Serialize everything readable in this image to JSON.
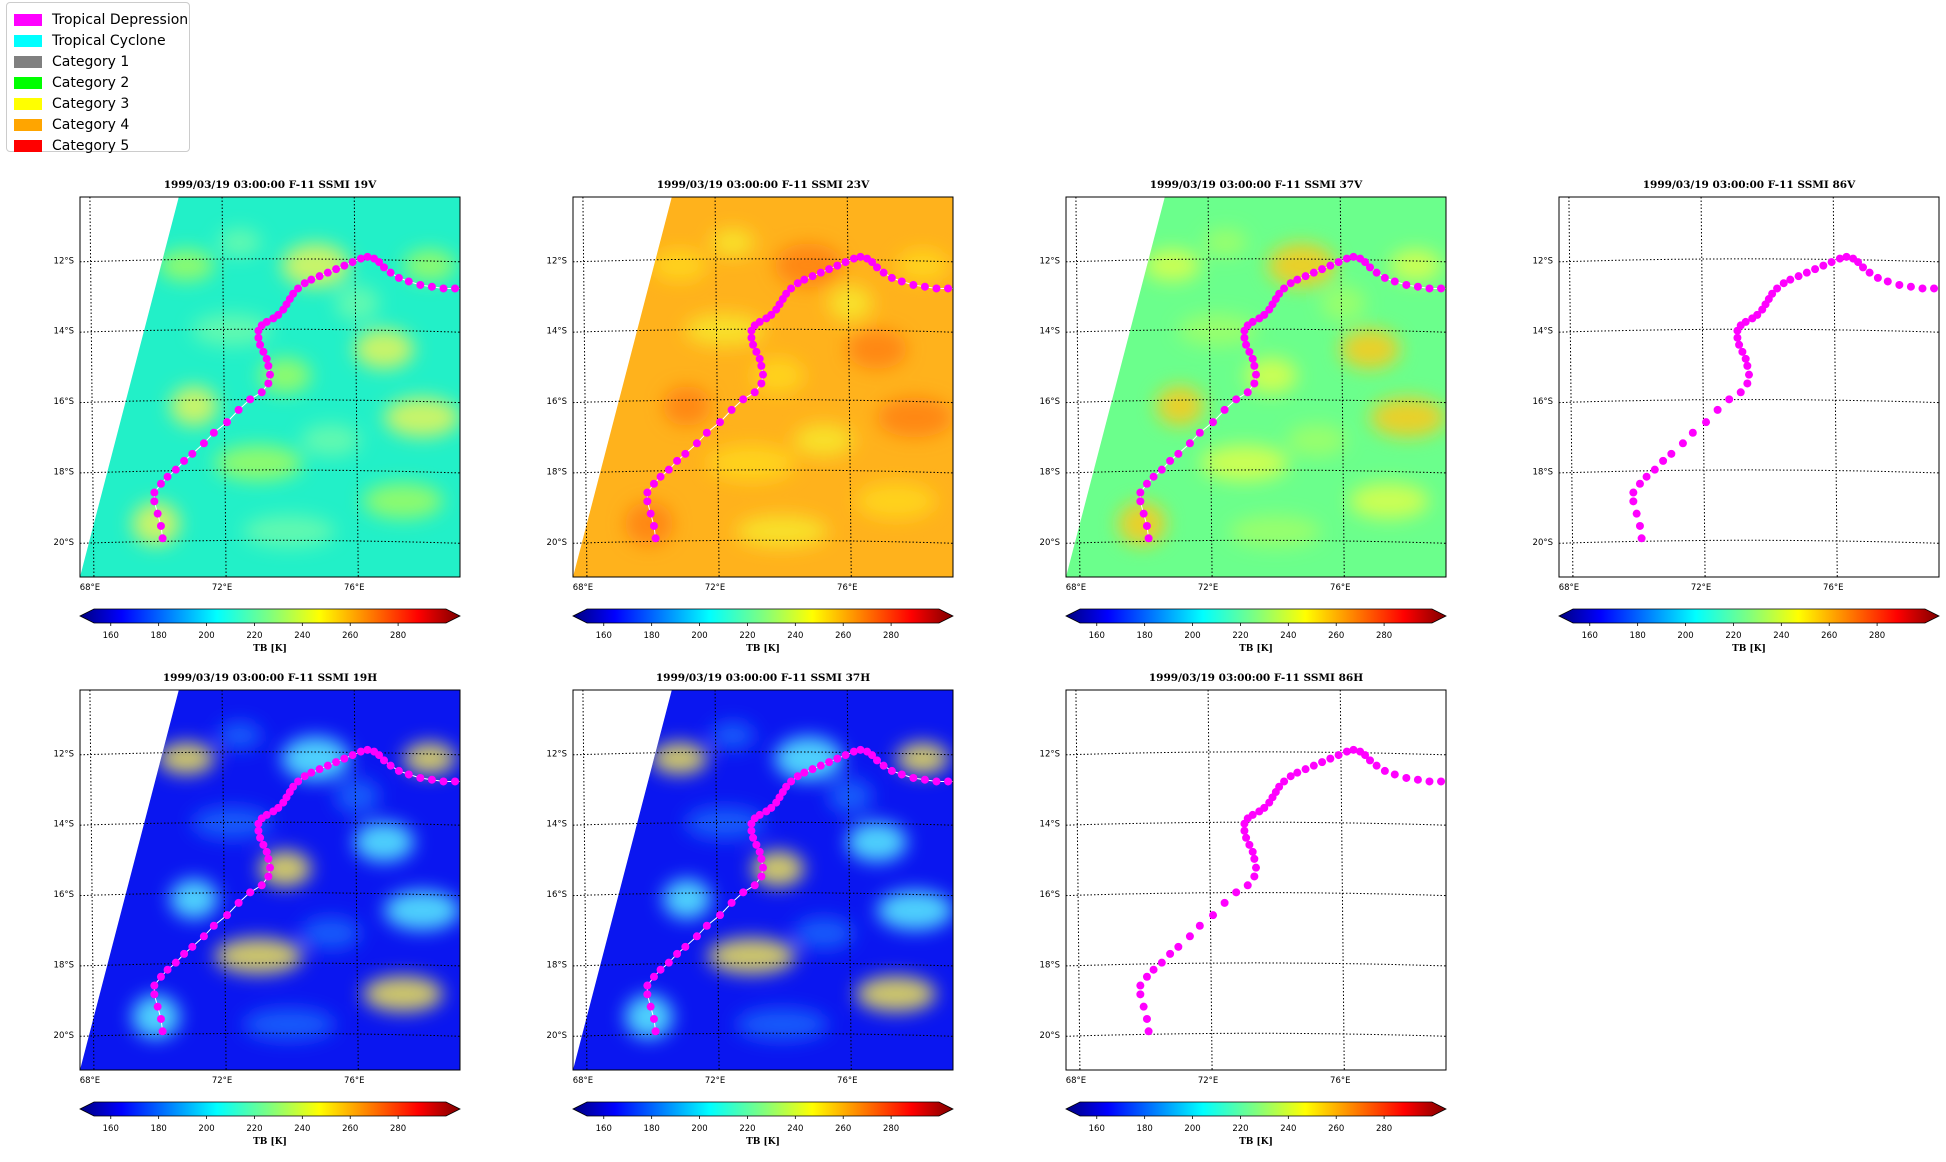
{
  "legend": {
    "items": [
      {
        "label": "Tropical Depression",
        "color": "#ff00ff"
      },
      {
        "label": "Tropical Cyclone",
        "color": "#00ffff"
      },
      {
        "label": "Category 1",
        "color": "#808080"
      },
      {
        "label": "Category 2",
        "color": "#00ff00"
      },
      {
        "label": "Category 3",
        "color": "#ffff00"
      },
      {
        "label": "Category 4",
        "color": "#ffa500"
      },
      {
        "label": "Category 5",
        "color": "#ff0000"
      }
    ]
  },
  "panels": [
    {
      "title": "1999/03/19 03:00:00  F-11 SSMI 19V",
      "fill": "cyan",
      "has_field": true
    },
    {
      "title": "1999/03/19 03:00:00  F-11 SSMI 23V",
      "fill": "orange",
      "has_field": true
    },
    {
      "title": "1999/03/19 03:00:00  F-11 SSMI 37V",
      "fill": "green",
      "has_field": true
    },
    {
      "title": "1999/03/19 03:00:00  F-11 SSMI 86V",
      "fill": "none",
      "has_field": false
    },
    {
      "title": "1999/03/19 03:00:00  F-11 SSMI 19H",
      "fill": "blue",
      "has_field": true
    },
    {
      "title": "1999/03/19 03:00:00  F-11 SSMI 37H",
      "fill": "blue",
      "has_field": true
    },
    {
      "title": "1999/03/19 03:00:00  F-11 SSMI 86H",
      "fill": "none",
      "has_field": false
    }
  ],
  "map": {
    "lon_labels": [
      "68°E",
      "72°E",
      "76°E"
    ],
    "lon_values": [
      68,
      72,
      76
    ],
    "lat_labels": [
      "12°S",
      "14°S",
      "16°S",
      "18°S",
      "20°S"
    ],
    "lat_values": [
      -12,
      -14,
      -16,
      -18,
      -20
    ],
    "lon_range": [
      67.7,
      79.2
    ],
    "lat_range": [
      -21.0,
      -10.2
    ]
  },
  "colorbar": {
    "label": "TB [K]",
    "ticks": [
      "160",
      "180",
      "200",
      "220",
      "240",
      "260",
      "280"
    ],
    "tick_values": [
      160,
      180,
      200,
      220,
      240,
      260,
      280
    ],
    "range": [
      153,
      300
    ]
  },
  "track": {
    "color": "#ff00ff",
    "points": [
      [
        70.2,
        -19.9
      ],
      [
        70.15,
        -19.55
      ],
      [
        70.05,
        -19.2
      ],
      [
        69.95,
        -18.85
      ],
      [
        69.95,
        -18.6
      ],
      [
        70.15,
        -18.35
      ],
      [
        70.35,
        -18.15
      ],
      [
        70.6,
        -17.95
      ],
      [
        70.85,
        -17.7
      ],
      [
        71.1,
        -17.5
      ],
      [
        71.45,
        -17.2
      ],
      [
        71.75,
        -16.9
      ],
      [
        72.15,
        -16.6
      ],
      [
        72.5,
        -16.25
      ],
      [
        72.85,
        -15.95
      ],
      [
        73.2,
        -15.75
      ],
      [
        73.4,
        -15.5
      ],
      [
        73.45,
        -15.25
      ],
      [
        73.4,
        -15.0
      ],
      [
        73.35,
        -14.8
      ],
      [
        73.25,
        -14.6
      ],
      [
        73.15,
        -14.4
      ],
      [
        73.1,
        -14.2
      ],
      [
        73.1,
        -14.0
      ],
      [
        73.2,
        -13.85
      ],
      [
        73.35,
        -13.75
      ],
      [
        73.55,
        -13.65
      ],
      [
        73.7,
        -13.55
      ],
      [
        73.85,
        -13.4
      ],
      [
        73.95,
        -13.25
      ],
      [
        74.05,
        -13.1
      ],
      [
        74.15,
        -12.95
      ],
      [
        74.3,
        -12.8
      ],
      [
        74.5,
        -12.65
      ],
      [
        74.7,
        -12.55
      ],
      [
        74.95,
        -12.45
      ],
      [
        75.2,
        -12.35
      ],
      [
        75.45,
        -12.25
      ],
      [
        75.7,
        -12.15
      ],
      [
        75.95,
        -12.05
      ],
      [
        76.2,
        -11.95
      ],
      [
        76.4,
        -11.9
      ],
      [
        76.6,
        -11.95
      ],
      [
        76.75,
        -12.05
      ],
      [
        76.9,
        -12.2
      ],
      [
        77.1,
        -12.35
      ],
      [
        77.35,
        -12.5
      ],
      [
        77.65,
        -12.6
      ],
      [
        78.0,
        -12.7
      ],
      [
        78.35,
        -12.75
      ],
      [
        78.7,
        -12.8
      ],
      [
        79.05,
        -12.8
      ],
      [
        79.3,
        -12.8
      ]
    ]
  }
}
